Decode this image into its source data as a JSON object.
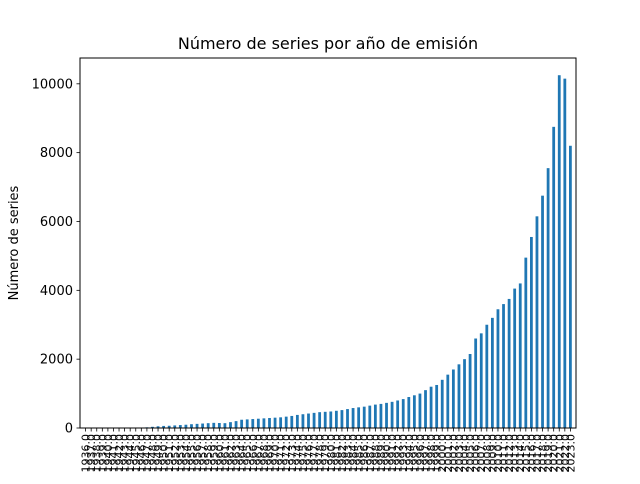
{
  "chart_data": {
    "type": "bar",
    "title": "Número de series por año de emisión",
    "xlabel": "",
    "ylabel": "Número de series",
    "ylim": [
      0,
      10750
    ],
    "yticks": [
      0,
      2000,
      4000,
      6000,
      8000,
      10000
    ],
    "ytick_labels": [
      "0",
      "2000",
      "4000",
      "6000",
      "8000",
      "10000"
    ],
    "grid": false,
    "legend": "none",
    "bar_color": "#1f77b4",
    "categories": [
      "1936.0",
      "1937.0",
      "1938.0",
      "1939.0",
      "1940.0",
      "1941.0",
      "1942.0",
      "1943.0",
      "1944.0",
      "1945.0",
      "1946.0",
      "1947.0",
      "1948.0",
      "1949.0",
      "1950.0",
      "1951.0",
      "1952.0",
      "1953.0",
      "1954.0",
      "1955.0",
      "1956.0",
      "1957.0",
      "1958.0",
      "1959.0",
      "1960.0",
      "1961.0",
      "1962.0",
      "1963.0",
      "1964.0",
      "1965.0",
      "1966.0",
      "1967.0",
      "1968.0",
      "1969.0",
      "1970.0",
      "1971.0",
      "1972.0",
      "1973.0",
      "1974.0",
      "1975.0",
      "1976.0",
      "1977.0",
      "1978.0",
      "1979.0",
      "1980.0",
      "1981.0",
      "1982.0",
      "1983.0",
      "1984.0",
      "1985.0",
      "1986.0",
      "1987.0",
      "1988.0",
      "1989.0",
      "1990.0",
      "1991.0",
      "1992.0",
      "1993.0",
      "1994.0",
      "1995.0",
      "1996.0",
      "1997.0",
      "1998.0",
      "1999.0",
      "2000.0",
      "2001.0",
      "2002.0",
      "2003.0",
      "2004.0",
      "2005.0",
      "2006.0",
      "2007.0",
      "2008.0",
      "2009.0",
      "2010.0",
      "2011.0",
      "2012.0",
      "2013.0",
      "2014.0",
      "2015.0",
      "2016.0",
      "2017.0",
      "2018.0",
      "2019.0",
      "2020.0",
      "2021.0",
      "2022.0",
      "2023.0"
    ],
    "values": [
      1,
      1,
      2,
      1,
      2,
      3,
      2,
      3,
      4,
      6,
      10,
      20,
      35,
      50,
      60,
      65,
      75,
      85,
      95,
      110,
      120,
      130,
      140,
      150,
      145,
      140,
      170,
      200,
      240,
      250,
      260,
      270,
      280,
      290,
      300,
      310,
      330,
      350,
      380,
      400,
      420,
      440,
      460,
      470,
      480,
      500,
      520,
      550,
      580,
      600,
      620,
      650,
      680,
      700,
      730,
      760,
      800,
      840,
      900,
      950,
      1000,
      1100,
      1200,
      1250,
      1400,
      1550,
      1700,
      1850,
      2000,
      2150,
      2600,
      2750,
      3000,
      3200,
      3450,
      3600,
      3750,
      4050,
      4200,
      4950,
      5550,
      6150,
      6750,
      7550,
      8750,
      10250,
      10150,
      8200
    ]
  }
}
